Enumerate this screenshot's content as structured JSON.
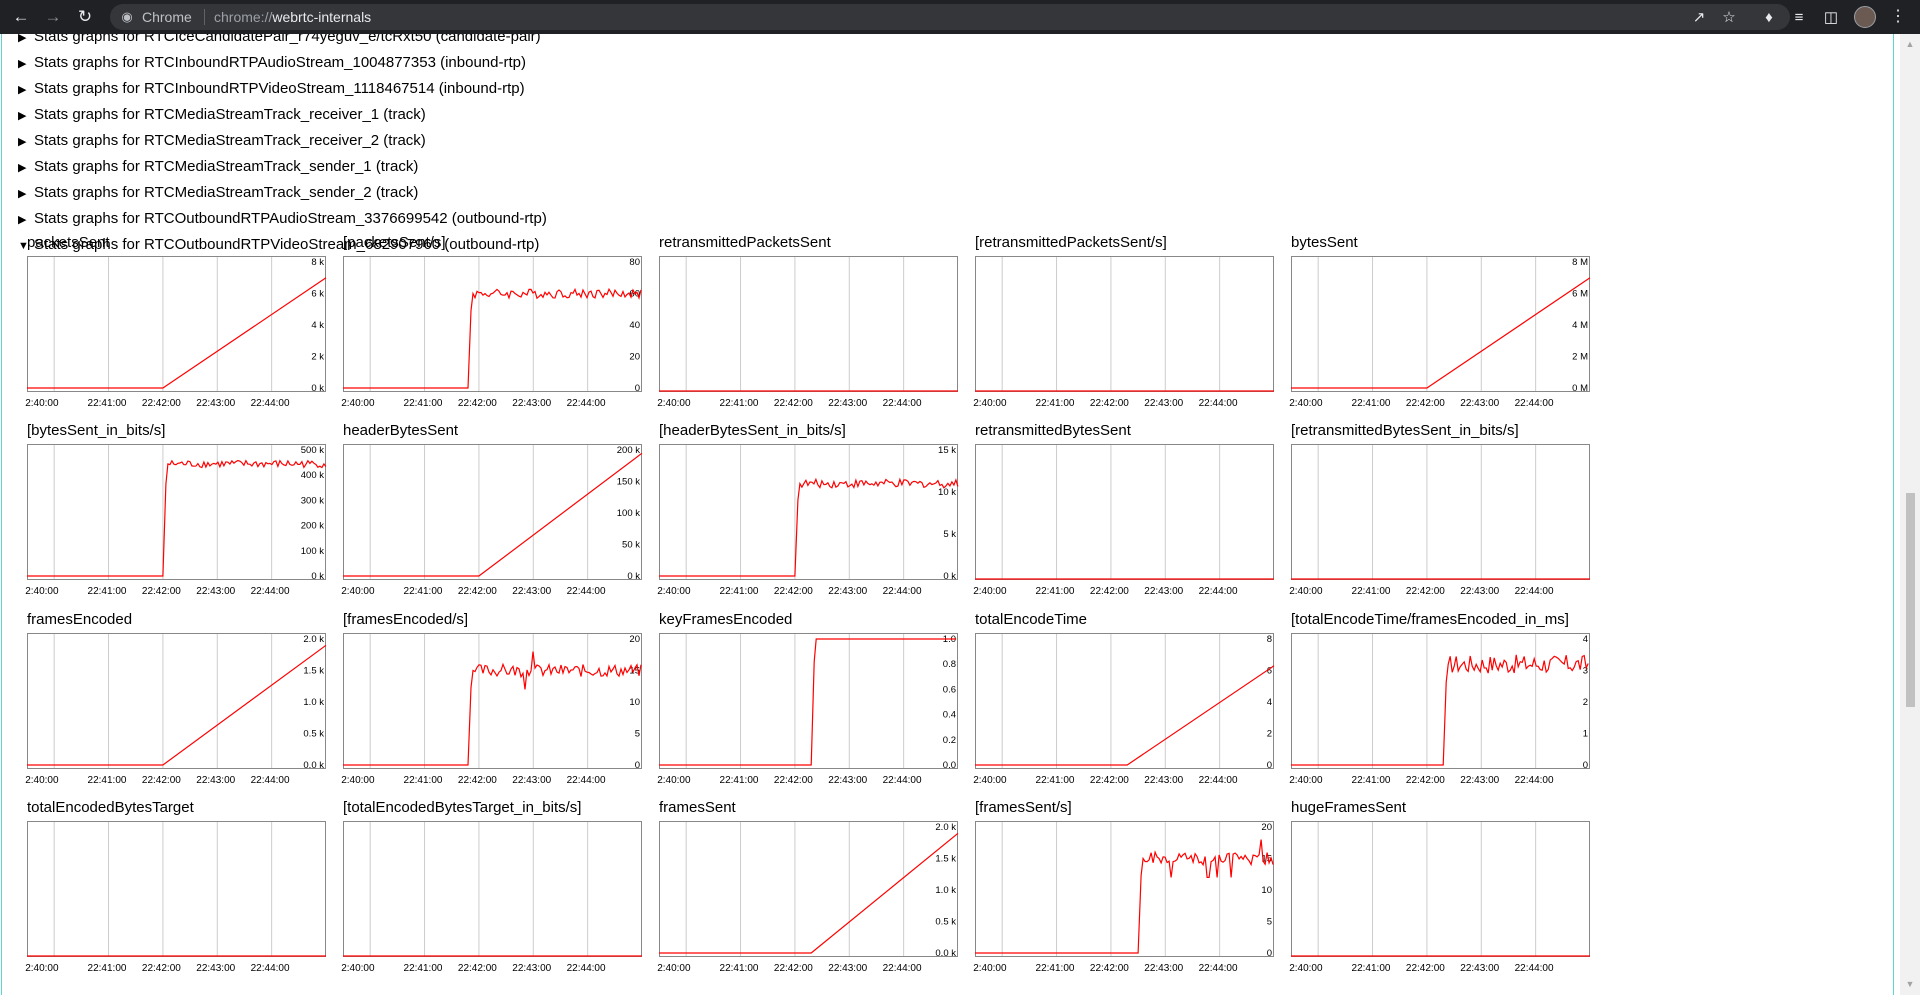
{
  "browser": {
    "icons": [
      "back-arrow-icon",
      "forward-arrow-icon",
      "reload-icon",
      "site-info-icon",
      "share-icon",
      "star-icon",
      "extensions-puzzle-icon",
      "reading-list-icon",
      "side-panel-icon",
      "profile-avatar",
      "kebab-menu-icon"
    ],
    "omnibox": {
      "chip": "Chrome",
      "url_scheme": "chrome://",
      "url_host": "webrtc-internals"
    }
  },
  "stats_rows": [
    {
      "label": "Stats graphs for RTCIceCandidatePair_r74yeguv_e/tcRxt50 (candidate-pair)",
      "expanded": false
    },
    {
      "label": "Stats graphs for RTCInboundRTPAudioStream_1004877353 (inbound-rtp)",
      "expanded": false
    },
    {
      "label": "Stats graphs for RTCInboundRTPVideoStream_1118467514 (inbound-rtp)",
      "expanded": false
    },
    {
      "label": "Stats graphs for RTCMediaStreamTrack_receiver_1 (track)",
      "expanded": false
    },
    {
      "label": "Stats graphs for RTCMediaStreamTrack_receiver_2 (track)",
      "expanded": false
    },
    {
      "label": "Stats graphs for RTCMediaStreamTrack_sender_1 (track)",
      "expanded": false
    },
    {
      "label": "Stats graphs for RTCMediaStreamTrack_sender_2 (track)",
      "expanded": false
    },
    {
      "label": "Stats graphs for RTCOutboundRTPAudioStream_3376699542 (outbound-rtp)",
      "expanded": false
    },
    {
      "label": "Stats graphs for RTCOutboundRTPVideoStream_682907960 (outbound-rtp)",
      "expanded": true
    }
  ],
  "triangles": {
    "collapsed": "▶",
    "expanded": "▼"
  },
  "x_ticks": [
    "2:40:00",
    "22:41:00",
    "22:42:00",
    "22:43:00",
    "22:44:00"
  ],
  "x_range_min": [
    39.5,
    45
  ],
  "chart_data": [
    {
      "type": "line",
      "title": "packetsSent",
      "ylim": [
        0,
        8000
      ],
      "y_ticks": [
        "8 k",
        "6 k",
        "4 k",
        "2 k",
        "0 k"
      ],
      "series": [
        {
          "shape": "ramp",
          "start": 42.0,
          "end": 45.0,
          "from": 0,
          "to": 7000
        }
      ]
    },
    {
      "type": "line",
      "title": "[packetsSent/s]",
      "ylim": [
        0,
        80
      ],
      "y_ticks": [
        "80",
        "60",
        "40",
        "20",
        "0"
      ],
      "series": [
        {
          "shape": "step",
          "start": 41.8,
          "from": 0,
          "to": 60,
          "noise": 3
        }
      ]
    },
    {
      "type": "line",
      "title": "retransmittedPacketsSent",
      "ylim": null,
      "y_ticks": [],
      "series": [
        {
          "shape": "flat"
        }
      ]
    },
    {
      "type": "line",
      "title": "[retransmittedPacketsSent/s]",
      "ylim": null,
      "y_ticks": [],
      "series": [
        {
          "shape": "flat"
        }
      ]
    },
    {
      "type": "line",
      "title": "bytesSent",
      "ylim": [
        0,
        8
      ],
      "y_ticks": [
        "8 M",
        "6 M",
        "4 M",
        "2 M",
        "0 M"
      ],
      "series": [
        {
          "shape": "ramp",
          "start": 42.0,
          "end": 45.0,
          "from": 0,
          "to": 7
        }
      ]
    },
    {
      "type": "line",
      "title": "[bytesSent_in_bits/s]",
      "ylim": [
        0,
        500
      ],
      "y_ticks": [
        "500 k",
        "400 k",
        "300 k",
        "200 k",
        "100 k",
        "0 k"
      ],
      "series": [
        {
          "shape": "step",
          "start": 42.0,
          "from": 0,
          "to": 445,
          "noise": 15
        }
      ]
    },
    {
      "type": "line",
      "title": "headerBytesSent",
      "ylim": [
        0,
        200
      ],
      "y_ticks": [
        "200 k",
        "150 k",
        "100 k",
        "50 k",
        "0 k"
      ],
      "series": [
        {
          "shape": "ramp",
          "start": 42.0,
          "end": 45.0,
          "from": 0,
          "to": 195
        }
      ]
    },
    {
      "type": "line",
      "title": "[headerBytesSent_in_bits/s]",
      "ylim": [
        0,
        15
      ],
      "y_ticks": [
        "15 k",
        "10 k",
        "5 k",
        "0 k"
      ],
      "series": [
        {
          "shape": "step",
          "start": 42.0,
          "from": 0,
          "to": 11,
          "noise": 0.5
        }
      ]
    },
    {
      "type": "line",
      "title": "retransmittedBytesSent",
      "ylim": null,
      "y_ticks": [],
      "series": [
        {
          "shape": "flat"
        }
      ]
    },
    {
      "type": "line",
      "title": "[retransmittedBytesSent_in_bits/s]",
      "ylim": null,
      "y_ticks": [],
      "series": [
        {
          "shape": "flat"
        }
      ]
    },
    {
      "type": "line",
      "title": "framesEncoded",
      "ylim": [
        0,
        2.0
      ],
      "y_ticks": [
        "2.0 k",
        "1.5 k",
        "1.0 k",
        "0.5 k",
        "0.0 k"
      ],
      "series": [
        {
          "shape": "ramp",
          "start": 42.0,
          "end": 45.0,
          "from": 0,
          "to": 1.9
        }
      ]
    },
    {
      "type": "line",
      "title": "[framesEncoded/s]",
      "ylim": [
        0,
        20
      ],
      "y_ticks": [
        "20",
        "15",
        "10",
        "5",
        "0"
      ],
      "series": [
        {
          "shape": "step",
          "start": 41.8,
          "from": 0,
          "to": 15,
          "noise": 1,
          "spike": true
        }
      ]
    },
    {
      "type": "line",
      "title": "keyFramesEncoded",
      "ylim": [
        0,
        1.0
      ],
      "y_ticks": [
        "1.0",
        "0.8",
        "0.6",
        "0.4",
        "0.2",
        "0.0"
      ],
      "series": [
        {
          "shape": "step",
          "start": 42.3,
          "from": 0,
          "to": 1.0,
          "noise": 0
        }
      ]
    },
    {
      "type": "line",
      "title": "totalEncodeTime",
      "ylim": [
        0,
        8
      ],
      "y_ticks": [
        "8",
        "6",
        "4",
        "2",
        "0"
      ],
      "series": [
        {
          "shape": "ramp",
          "start": 42.3,
          "end": 45.0,
          "from": 0,
          "to": 6.3
        }
      ]
    },
    {
      "type": "line",
      "title": "[totalEncodeTime/framesEncoded_in_ms]",
      "ylim": [
        0,
        4
      ],
      "y_ticks": [
        "4",
        "3",
        "2",
        "1",
        "0"
      ],
      "series": [
        {
          "shape": "step",
          "start": 42.3,
          "from": 0,
          "to": 3.2,
          "noise": 0.3
        }
      ]
    },
    {
      "type": "line",
      "title": "totalEncodedBytesTarget",
      "ylim": null,
      "y_ticks": [],
      "series": [
        {
          "shape": "flat"
        }
      ]
    },
    {
      "type": "line",
      "title": "[totalEncodedBytesTarget_in_bits/s]",
      "ylim": null,
      "y_ticks": [],
      "series": [
        {
          "shape": "flat"
        }
      ]
    },
    {
      "type": "line",
      "title": "framesSent",
      "ylim": [
        0,
        2.0
      ],
      "y_ticks": [
        "2.0 k",
        "1.5 k",
        "1.0 k",
        "0.5 k",
        "0.0 k"
      ],
      "series": [
        {
          "shape": "ramp",
          "start": 42.3,
          "end": 45.0,
          "from": 0,
          "to": 1.9
        }
      ]
    },
    {
      "type": "line",
      "title": "[framesSent/s]",
      "ylim": [
        0,
        20
      ],
      "y_ticks": [
        "20",
        "15",
        "10",
        "5",
        "0"
      ],
      "series": [
        {
          "shape": "step",
          "start": 42.5,
          "from": 0,
          "to": 15,
          "noise": 1,
          "spike": true
        }
      ]
    },
    {
      "type": "line",
      "title": "hugeFramesSent",
      "ylim": null,
      "y_ticks": [],
      "series": [
        {
          "shape": "flat"
        }
      ]
    }
  ],
  "colors": {
    "line": "#ff0000",
    "grid": "#cccccc",
    "border": "#888888",
    "toolbar": "#202124",
    "accent": "#62d4d0"
  }
}
